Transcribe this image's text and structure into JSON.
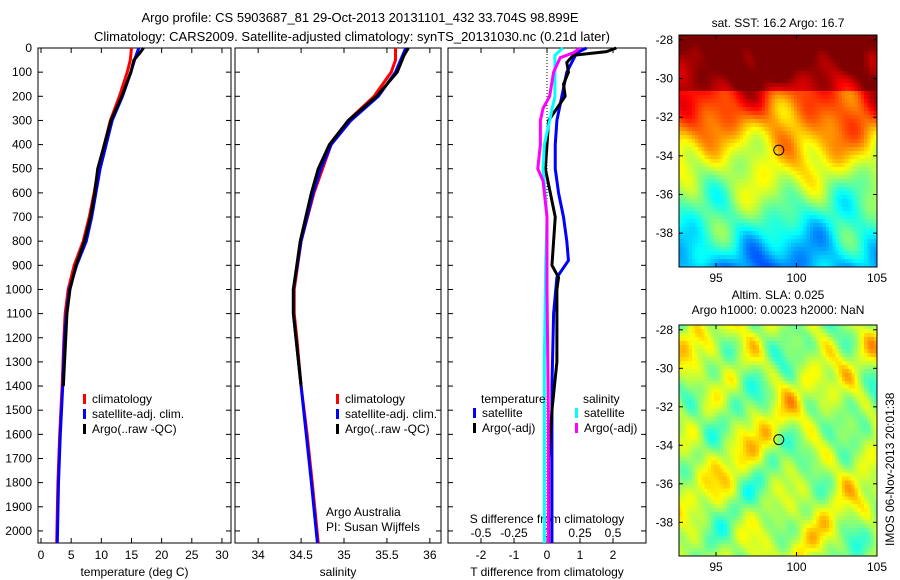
{
  "title_line1": "Argo profile: CS 5903687_81 29-Oct-2013 20131101_432 33.704S 98.899E",
  "title_line2": "Climatology: CARS2009. Satellite-adjusted climatology: synTS_20131030.nc (0.21d later)",
  "credit": "Argo Australia",
  "pi": "PI: Susan Wijffels",
  "timestamp": "IMOS 06-Nov-2013 20:01:38",
  "colors": {
    "climatology": "#ff0000",
    "satellite": "#0000ff",
    "argo": "#000000",
    "sal_satellite": "#00ffff",
    "sal_argo": "#ff00ff"
  },
  "chart_data": [
    {
      "type": "line",
      "name": "temperature-profile",
      "xlabel": "temperature (deg C)",
      "ylabel": "depth",
      "xlim": [
        -0.5,
        31.5
      ],
      "ylim": [
        2050,
        0
      ],
      "xticks": [
        0,
        5,
        10,
        15,
        20,
        25,
        30
      ],
      "yticks": [
        0,
        100,
        200,
        300,
        400,
        500,
        600,
        700,
        800,
        900,
        1000,
        1100,
        1200,
        1300,
        1400,
        1500,
        1600,
        1700,
        1800,
        1900,
        2000
      ],
      "legend": [
        "climatology",
        "satellite-adj. clim.",
        "Argo(..raw -QC)"
      ],
      "legend_position": "bottom-center",
      "series": [
        {
          "name": "climatology",
          "color": "#ff0000",
          "depth": [
            0,
            50,
            100,
            200,
            300,
            400,
            500,
            600,
            700,
            800,
            900,
            1000,
            1100,
            1200,
            1400,
            1600,
            1800,
            2050
          ],
          "values": [
            15,
            14.8,
            14.3,
            13,
            11.5,
            10.5,
            9.5,
            8.8,
            8,
            7,
            5.5,
            4.5,
            4.0,
            3.8,
            3.5,
            3.1,
            2.8,
            2.6
          ]
        },
        {
          "name": "satellite-adj. clim.",
          "color": "#0000ff",
          "depth": [
            0,
            50,
            100,
            200,
            300,
            400,
            500,
            600,
            700,
            800,
            900,
            1000,
            1100,
            1200,
            1400,
            1600,
            1800,
            2050
          ],
          "values": [
            16.2,
            15.5,
            14.9,
            13.5,
            11.8,
            10.8,
            9.8,
            9.1,
            8.4,
            7.5,
            5.9,
            4.7,
            4.2,
            3.9,
            3.6,
            3.2,
            2.9,
            2.7
          ]
        },
        {
          "name": "Argo(..raw -QC)",
          "color": "#000000",
          "depth": [
            0,
            20,
            50,
            100,
            200,
            300,
            400,
            500,
            600,
            700,
            800,
            900,
            1000,
            1100,
            1200,
            1400
          ],
          "values": [
            17,
            16.4,
            15.4,
            14.9,
            13.4,
            11.6,
            10.5,
            9.4,
            8.9,
            8.2,
            7.2,
            5.8,
            4.8,
            4.3,
            4.1,
            3.7
          ]
        }
      ]
    },
    {
      "type": "line",
      "name": "salinity-profile",
      "xlabel": "salinity",
      "xlim": [
        33.73,
        36.13
      ],
      "ylim": [
        2050,
        0
      ],
      "xticks": [
        34,
        34.5,
        35,
        35.5,
        36
      ],
      "legend": [
        "climatology",
        "satellite-adj. clim.",
        "Argo(..raw -QC)"
      ],
      "legend_position": "bottom-center",
      "series": [
        {
          "name": "climatology",
          "color": "#ff0000",
          "depth": [
            0,
            50,
            100,
            150,
            200,
            300,
            400,
            500,
            600,
            800,
            1000,
            1100,
            1200,
            1400,
            1600,
            1800,
            2050
          ],
          "values": [
            35.6,
            35.6,
            35.55,
            35.45,
            35.35,
            35.05,
            34.85,
            34.75,
            34.65,
            34.5,
            34.42,
            34.42,
            34.45,
            34.5,
            34.57,
            34.63,
            34.7
          ]
        },
        {
          "name": "satellite-adj. clim.",
          "color": "#0000ff",
          "depth": [
            0,
            50,
            100,
            150,
            200,
            300,
            400,
            500,
            600,
            800,
            1000,
            1100,
            1200,
            1400,
            1600,
            1800,
            2050
          ],
          "values": [
            35.72,
            35.66,
            35.6,
            35.5,
            35.4,
            35.08,
            34.85,
            34.73,
            34.64,
            34.5,
            34.41,
            34.41,
            34.44,
            34.5,
            34.56,
            34.62,
            34.69
          ]
        },
        {
          "name": "Argo(..raw -QC)",
          "color": "#000000",
          "depth": [
            0,
            30,
            100,
            150,
            200,
            300,
            400,
            500,
            600,
            800,
            1000,
            1100,
            1200,
            1400
          ],
          "values": [
            35.75,
            35.7,
            35.62,
            35.5,
            35.38,
            35.05,
            34.83,
            34.7,
            34.62,
            34.49,
            34.41,
            34.41,
            34.44,
            34.5
          ]
        }
      ]
    },
    {
      "type": "line",
      "name": "difference-profile",
      "xlabel": "T difference from climatology",
      "xlabel2": "S difference from climatology",
      "xlim": [
        -3,
        3
      ],
      "ylim": [
        2050,
        0
      ],
      "xticks": [
        -2,
        -1,
        0,
        1,
        2
      ],
      "xticks2": [
        -0.5,
        -0.25,
        0,
        0.25,
        0.5
      ],
      "legend_titles": [
        "temperature",
        "salinity"
      ],
      "legend": [
        "satellite",
        "Argo(-adj)",
        "satellite",
        "Argo(-adj)"
      ],
      "series": [
        {
          "name": "temperature satellite",
          "color": "#0000ff",
          "units": "T",
          "depth": [
            0,
            20,
            100,
            200,
            300,
            400,
            500,
            600,
            700,
            800,
            880,
            950,
            1100,
            1400,
            2050
          ],
          "values": [
            1.2,
            0.9,
            0.6,
            0.45,
            0.3,
            0.25,
            0.25,
            0.35,
            0.5,
            0.6,
            0.65,
            0.3,
            0.2,
            0.15,
            0.15
          ]
        },
        {
          "name": "temperature Argo(-adj)",
          "color": "#000000",
          "units": "T",
          "depth": [
            0,
            15,
            30,
            60,
            100,
            150,
            200,
            250,
            300,
            400,
            500,
            600,
            700,
            800,
            900,
            950,
            1000,
            1100,
            1300,
            1500,
            1700,
            2050
          ],
          "values": [
            2.1,
            1.8,
            0.8,
            0.6,
            0.65,
            0.5,
            0.55,
            0.3,
            0.05,
            0.0,
            -0.05,
            0.1,
            0.25,
            0.2,
            0.15,
            0.35,
            0.3,
            0.3,
            0.3,
            0.15,
            0.05,
            0.05
          ]
        },
        {
          "name": "salinity satellite",
          "color": "#00ffff",
          "units": "S",
          "depth": [
            0,
            30,
            100,
            200,
            300,
            400,
            500,
            700,
            900,
            1300,
            2050
          ],
          "values": [
            0.12,
            0.06,
            0.06,
            0.06,
            0.02,
            -0.02,
            -0.03,
            0.0,
            -0.01,
            -0.02,
            -0.02
          ]
        },
        {
          "name": "salinity Argo(-adj)",
          "color": "#ff00ff",
          "units": "S",
          "depth": [
            0,
            20,
            40,
            100,
            200,
            250,
            300,
            400,
            500,
            550,
            700,
            1000,
            1500,
            2050
          ],
          "values": [
            0.25,
            0.2,
            0.1,
            0.05,
            0.02,
            -0.03,
            -0.05,
            -0.05,
            -0.07,
            -0.03,
            0.0,
            0.0,
            0.01,
            0.01
          ]
        }
      ]
    },
    {
      "type": "heatmap",
      "name": "sst-map",
      "title": "sat. SST: 16.2 Argo: 16.7",
      "xlim": [
        92.7,
        105
      ],
      "ylim": [
        -39.75,
        -27.75
      ],
      "xticks": [
        95,
        100,
        105
      ],
      "yticks": [
        -28,
        -30,
        -32,
        -34,
        -36,
        -38
      ],
      "marker": {
        "lon": 98.899,
        "lat": -33.704
      }
    },
    {
      "type": "heatmap",
      "name": "sla-map",
      "title": "Altim. SLA: 0.025",
      "subtitle": "Argo h1000: 0.0023 h2000: NaN",
      "xlim": [
        92.7,
        105
      ],
      "ylim": [
        -39.75,
        -27.75
      ],
      "xticks": [
        95,
        100,
        105
      ],
      "yticks": [
        -28,
        -30,
        -32,
        -34,
        -36,
        -38
      ],
      "marker": {
        "lon": 98.899,
        "lat": -33.704
      }
    }
  ]
}
